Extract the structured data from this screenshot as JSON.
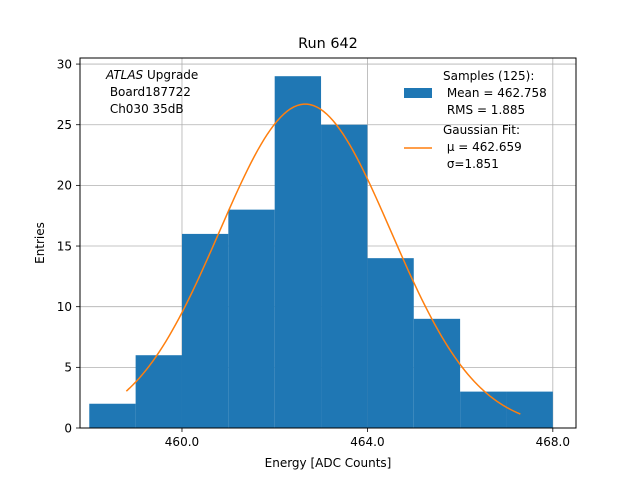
{
  "chart_data": {
    "type": "bar",
    "title": "Run 642",
    "xlabel": "Energy [ADC Counts]",
    "ylabel": "Entries",
    "xlim": [
      457.8,
      468.5
    ],
    "ylim": [
      0,
      30.5
    ],
    "x_ticks": [
      {
        "value": 460,
        "label": "460.0"
      },
      {
        "value": 464,
        "label": "464.0"
      },
      {
        "value": 468,
        "label": "468.0"
      }
    ],
    "y_ticks": [
      {
        "value": 0,
        "label": "0"
      },
      {
        "value": 5,
        "label": "5"
      },
      {
        "value": 10,
        "label": "10"
      },
      {
        "value": 15,
        "label": "15"
      },
      {
        "value": 20,
        "label": "20"
      },
      {
        "value": 25,
        "label": "25"
      },
      {
        "value": 30,
        "label": "30"
      }
    ],
    "grid": true,
    "bin_edges": [
      458.0,
      459.0,
      460.0,
      461.0,
      462.0,
      463.0,
      464.0,
      465.0,
      466.0,
      467.0,
      468.0
    ],
    "values": [
      2,
      6,
      16,
      18,
      29,
      25,
      14,
      9,
      3,
      3
    ],
    "bar_color": "#1f77b4",
    "fit": {
      "mu": 462.659,
      "sigma": 1.851,
      "amplitude": 26.7,
      "x_range": [
        458.8,
        467.3
      ],
      "color": "#ff7f0e"
    },
    "annotation": {
      "line1_italic": "ATLAS",
      "line1_rest": " Upgrade",
      "line2": " Board187722",
      "line3": " Ch030 35dB"
    },
    "legend": {
      "position": "upper-right",
      "entries": [
        {
          "type": "bar",
          "lines": [
            "Samples (125):",
            " Mean = 462.758",
            " RMS = 1.885"
          ]
        },
        {
          "type": "line",
          "lines": [
            "Gaussian Fit:",
            " μ = 462.659",
            " σ=1.851"
          ]
        }
      ]
    }
  }
}
